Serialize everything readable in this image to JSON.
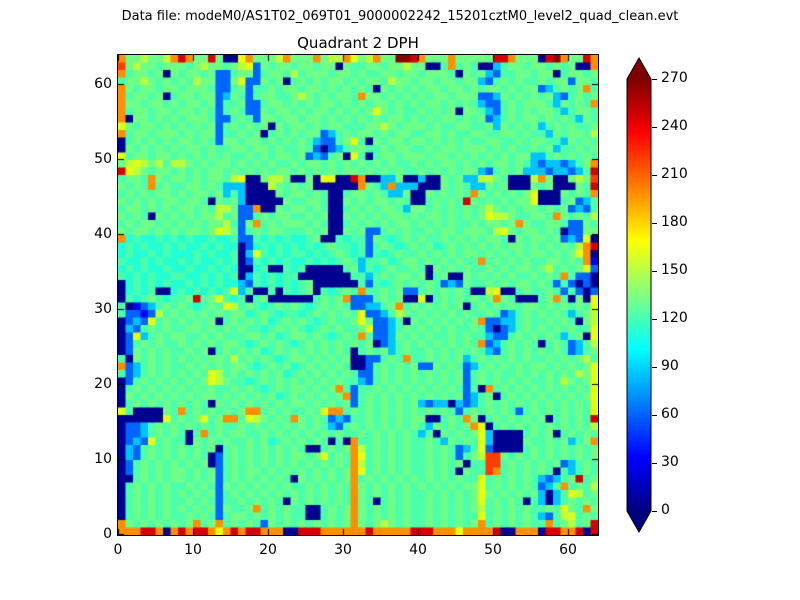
{
  "window": {
    "data_file_label": "Data file: modeM0/AS1T02_069T01_9000002242_15201cztM0_level2_quad_clean.evt"
  },
  "chart_data": {
    "type": "heatmap",
    "title": "Quadrant 2 DPH",
    "xlabel": "",
    "ylabel": "",
    "xlim": [
      0,
      64
    ],
    "ylim": [
      0,
      64
    ],
    "x_ticks": [
      0,
      10,
      20,
      30,
      40,
      50,
      60
    ],
    "y_ticks": [
      0,
      10,
      20,
      30,
      40,
      50,
      60
    ],
    "grid_on": false,
    "colorbar": {
      "colormap": "jet",
      "vmin": 0,
      "vmax": 270,
      "extend": "both",
      "ticks": [
        0,
        30,
        60,
        90,
        120,
        150,
        180,
        210,
        240,
        270
      ],
      "gradient_top_to_bottom": [
        "#7f0000",
        "#ff0000",
        "#ffff00",
        "#00ffff",
        "#0000ff",
        "#00007f"
      ],
      "gradient_offsets": [
        0,
        0.125,
        0.375,
        0.625,
        0.875,
        1
      ]
    },
    "value_palette": {
      "N": 5,
      "n": 30,
      "B": 60,
      "b": 85,
      "c": 105,
      "t": 118,
      "g": 130,
      "G": 142,
      "y": 155,
      "Y": 170,
      "w": 185,
      "o": 205,
      "O": 230,
      "R": 250,
      "D": 268
    },
    "palette_colors": {
      "N": "#000090",
      "n": "#0002f8",
      "B": "#0065ff",
      "b": "#00c3ff",
      "c": "#22ffd4",
      "t": "#4bffab",
      "g": "#6fff87",
      "G": "#93ff63",
      "y": "#b9ff3d",
      "Y": "#e4ff12",
      "w": "#ffd500",
      "o": "#ff8e00",
      "O": "#ff3c00",
      "R": "#d60000",
      "D": "#8c0000"
    },
    "rows_top_to_bottom": true,
    "grid": [
      "oggyggyoRoggRgNNYogggyogggogyyoYgyoggDDRogggogggggRRogggNRDoggRo",
      "OgyggtgggtgyggtgyYBgtggtggtggNgttggtggyggNNtotgtNNbtggtggtgtgNNo",
      "otggtgNgtggtgBBtggBtggtytgggtggtgttggtggtgggtNgtgbBttggtggNtggtg",
      "tggygtgtgtyggBBgYBBgtgNtgtgtggtgtggtyggtggtggtggbBtgtgttgtggBggt",
      "ogtggtggtgggtBBtgBttgtggtggtgtgtgtNgtgtgtggtggtgtggtgtggBbtgtgot",
      "otggtgNtggtggBbgtBtggttgygtgtggtoggtgtgtgtggtgggBBbgtgtgtgbBtgtg",
      "oggtggtgtggtgBttgBBtggtgtgtggtgtgtggtgtgtggtgtgtbBBtgtgggtbgtgto",
      "otggtggtggtgtBtgtBBgtggtgtggtgtgtgYgtgttgtgtgNggtbBtgtgtggtbtggt",
      "oNggtgtgtgggtBBtgtBggtggtggtgtgtgtgtggtgtgtggtgtgBbtgtggtgtgtbgt",
      "YgtggtgtgtgtgBtgtgtgNgtggtgtggtttggygtgggtgttggttgbgtgtgbtgtgttg",
      "otggtgggtgtggBttgtgNtgtgtggBbtgtggtgtggttggtgttggttggtgttbgtggty",
      "NtgtgtgtggtgtBggtggtgtgtgtbBBtgYtNgtggtggtgtgtgttggttgtggttbgtgt",
      "NgtgtgtgtggtgttggtggtgttgtBNBbtggttgtggttgtggtgggtgtgttgtgbttgtg",
      "YtggtggtgtgtgtgttgtgtggtgBbBtgNYtNtggtgggtggtgtgtgtgtggbbtgtgtgt",
      "gyYygytyygtgtggtgtgtgttgtggtgtgtgtgtgttgtgtggtgtgtggtgtbBbbBbtgo",
      "RYygtggtgtgtggtgtgtgtggtgtgtgtggtgtgtgttgtgtgtggbBtgtgbbbBbbBbtR",
      "tggtogtggtgtggtyYNNgyygNNgNYYNNRoNNbbgNNbNNgtgbbyygtNNNyogNNgygO",
      "gtgtotgttggtgtbbbNNNygtgtgNNNNNNogtbobbbNNNgtgtbbgtgNNNgtgNNNgtR",
      "tgtgtggtgtggtgbtbNNNNgtggtgtNNtggtgtbbgNNgtgtgtogtgtgtgYNNNgtgto",
      "gtgtgtggtggtNgtgbNNNNNgttggtNNgtgtggtgtNNtgtgtRgtgtgtggYNNNtgBbt",
      "tggtgtgtggtgtyygBBoNNgtggtgtNNtgtgtggtbggtgtgtgtgygtgtggtgtgBbBt",
      "gtgtNgtgtgtggytgBBtgtggttgtgNNgtgtgtggtgtggtgtgtgYyygttggtogtgty",
      "tgtggtgtgtgtggytBgotgtgggtgtNNtgtgtgtggtgtgtgttgtggtgogttggtBBgt",
      "gtggtgtgtggtgYygBtgtggtttgtgNNgtgBBtgtgttgtggtgggtyYgtggtgtNBBgg",
      "octcctctctcctcctBBtctctcctgNNtcttBgtctgtgttgtgtgtggtNgtggtgBbBYN",
      "ctctcctctcctctccNBctctctctctgttctBtgtctgtgctgtgtgtgtggtgtgtgtyoR",
      "ctcctctccctctcctNbYtctcttctctgtctBtctgttgtgtgtggtgtgtgtggtgtgYoN",
      "tcctctcctctcctctNBtctctcctctctgtbttgctggtgtgtgttotgtgtgttggtgton",
      "ctctcctcctcctctcNNctNNtctNNNNNtgbtctgttgtNgtgtgttgtgtggtgytgtgYB",
      "tctctccttcctctctNbtctcttNNNNNNNttbtgtggtgNtgNNgtgtgtgttgtgtotBBN",
      "NctctctcctctctccbBtctctctgNNNNNNtBtctgtgtgtBbBgttgtgtggtgtBtBNBN",
      "NctctNNctctctctYbtNNtNtctgNtctgtottgtgBBtgtgtgtNNyYNNtgttgtBtBNB",
      "NtctgtcttgRtgYtctNtgNNNNNNtgtgoBBBtgtgNNYNtgtgtgtgogtNNNtgotNgNY",
      "tNnBbtgtgtctgtYytgtctgtgtctgtgtBBbbtgotgtgtgtgNtgtgtgtggtgtgtgtY",
      "tBBnBytgtgtgtgtggctgtcttctgtgtgtYBBbtygtgtgtgtgttgtBbtgtgtgtbtgy",
      "NBbBYtgtgtgtgNtgtgtgctgtgtctgttgYgBBbtNgtgtgtgtgoBBbbtgttgtgtNgy",
      "NbBtgtgttggtgtgtgttctgtgtctgtgttgYBBbtgtgtgtgttgtBNBbtgtgtgtgttY",
      "NBYbtgtggttgtgtttggtgctggtgtctgtotBBbgtgtgttgtgttbBBtgtgtgtbtgNY",
      "NBtgtgttgtgtgtggtctgtgtctgtgtgtgtgNBbtgtgtgtgtgtoBbtgtgtNtgtBbty",
      "NBgtgtgttgtgNtgtgtgctgtgtgtgtgtNtgtgbtgttgtgtgtgtbBtgtgtgtgtBbtg",
      "tNgtgtgtgtgtggtytgtgtctggtgtgtgNNBBtgtottgtgtgbtgtgtgtgttgtgtgyt",
      "oBbtgtgttgtgtgtggtctgtgctgtgtgtNNBtgtgtgBBgtgtBbtgtgtgtggtgtgtgY",
      "tBbtgtgtgtgtYytgtgtgtgctgtgtgtgtBBtgtgtgtgtgtgBtgtgttgtgtgtgtygY",
      "NBtgtgtgtgtgYygttctgtgtgtgtgtgttbBtgtgtgtgtgtgBtgtgtgtgttgtygtgY",
      "NtgtgtgtgtgtgttgtgtctgtggtgtgotBttgtgtgtgtgtgtBtNotgtgtgtgtgtgtY",
      "NgtgtgtgtgtggtgtgtgtgctgtgtgtgoBtgtgtgtgtgtgtgBbtgNtgtgtgtgtgtgY",
      "NtgtgtgtgtgtNgtgtgtgtgtggtgtgtgBtgtgtgtgbBbbNbBbtgtgtgtgtgtgtgtY",
      "YtNNNNgtotgtgtgtgootgtgttgtYootgtgtgtgtgtgtgtBtgtgtgtBtgtgtgtgtY",
      "NNNNNNYtgtgYtgootYygtgtogtgtBbBttgtgtgtggNNtgtogNtgtgtgtgNtgtgtR",
      "NBBbtgtgtgtgtgttgtgtgtgtgtgtbBtgtgtgtgtgtbgtgtgoYNtgtgtgtgtgtgty",
      "NBBbtgtgtNtotgtggttgtgtgtgtgtgttgtgtgtgtbtNgtgtgYbNNNNtgtgNtgtgt",
      "NBbBYtgttNgtgtgttgtgctgtgtgtNtNottgtgtgttgtbgtgtYbNNNNgttgtgbtgo",
      "NbBtgtgtgtgtgNtgtgtgtgtgtNNtgtgoytgtgtgttgtgtBbtYBNNNNtgtgtgtgtg",
      "NbBtgtgtgtgtNBtgtgtgtgtggtgYtgtoYtgtgtgttgtgtBtgyOOgtgtgtgtgtgtg",
      "NBtgtgtgtgtgNBtgtgtgtgtgtgtgtgtoytgtgtgttgtgtgNttOOtgtgtgtgBbtgt",
      "NBtgtgtggtgtgBtgtggtgtgtgtgtgtgoYtgtgtgttgtgtNgttOotgtgtgtNtbtgt",
      "NNtgtgtggtgtgBtgtgtgtgtNgtgtgtgotgtgtgtgtgtgtgttYtgtgtgtbBbtgRtg",
      "NtgtgtgttgtgtBgtgtgtgtgttgtgtgtogtgtgtgtgtgtgtggYtgtgtgtBbtotgty",
      "NtgtgtgtgtgtgBtgtgtgtgtgtgtgtgtogtgtgtgttgtgtgtgYgtgtgtgbNbtYytg",
      "NtgtgtgttgtgtBttgtgtgtNgtgtgtgtogtNtgtgttgtgtgtgYtgtgtNtbNbtgtgt",
      "NtgtgtgtgtgtgBgttgotgtgttNNtgtgogtgtgtgttgtgtgtgytgtgtgttgtYgtog",
      "NtgtgtgttgtgtBtggtgtgtgttNNtgtgogtgtgtgttgtgtgttYtgtgtgtbBtyYtgt",
      "ogtgtgtgtgotgotgtgtBgtgtgtgtgtgogtgygtgttgtgtgtgotgtgtgttotgytgR",
      "oooRRoNoRoRRoYoRoRRoooNNRRRooooooRoooooRRRoooYooooRNNoooNRRooRNR"
    ]
  }
}
